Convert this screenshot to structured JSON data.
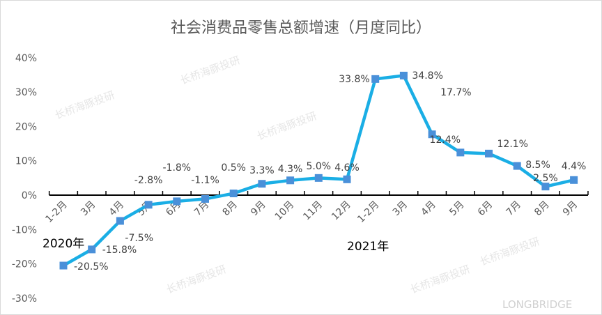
{
  "chart_data": {
    "type": "line",
    "title": "社会消费品零售总额增速（月度同比）",
    "categories": [
      "1-2月",
      "3月",
      "4月",
      "5月",
      "6月",
      "7月",
      "8月",
      "9月",
      "10月",
      "11月",
      "12月",
      "1-2月",
      "3月",
      "4月",
      "5月",
      "6月",
      "7月",
      "8月",
      "9月"
    ],
    "group_labels": [
      "2020年",
      "2021年"
    ],
    "series": [
      {
        "values": [
          -20.5,
          -15.8,
          -7.5,
          -2.8,
          -1.8,
          -1.1,
          0.5,
          3.3,
          4.3,
          5.0,
          4.6,
          33.8,
          34.8,
          17.7,
          12.4,
          12.1,
          8.5,
          2.5,
          4.4
        ]
      }
    ],
    "data_labels": [
      "-20.5%",
      "-15.8%",
      "-7.5%",
      "-2.8%",
      "-1.8%",
      "-1.1%",
      "0.5%",
      "3.3%",
      "4.3%",
      "5.0%",
      "4.6%",
      "33.8%",
      "34.8%",
      "17.7%",
      "12.4%",
      "12.1%",
      "8.5%",
      "2.5%",
      "4.4%"
    ],
    "ylim": [
      -30,
      40
    ],
    "yticks": [
      "-30%",
      "-20%",
      "-10%",
      "0%",
      "10%",
      "20%",
      "30%",
      "40%"
    ],
    "ytick_values": [
      -30,
      -20,
      -10,
      0,
      10,
      20,
      30,
      40
    ],
    "grid": false,
    "legend": "none",
    "colors": {
      "line": "#1aaee5",
      "marker": "#4a90d9"
    }
  },
  "watermark": {
    "text": "长桥海豚投研",
    "logo": "LONGBRIDGE"
  }
}
